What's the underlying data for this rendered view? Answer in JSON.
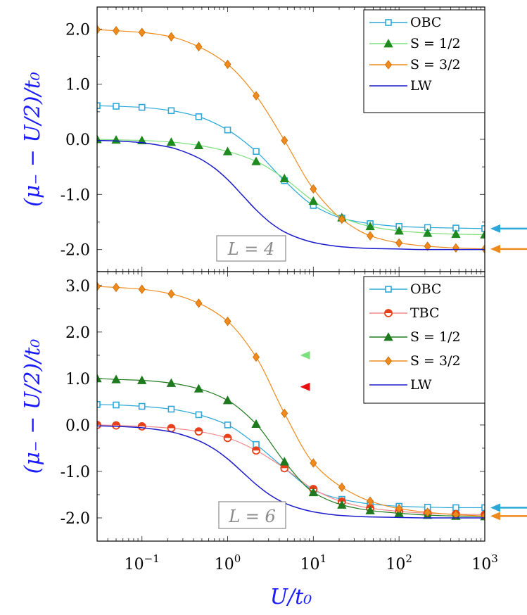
{
  "chart_data": [
    {
      "type": "line",
      "panel": "top",
      "xscale": "log",
      "xlim": [
        0.03,
        1000
      ],
      "ylim": [
        -2.4,
        2.4
      ],
      "yticks": [
        -2.0,
        -1.0,
        0.0,
        1.0,
        2.0
      ],
      "ytick_labels": [
        "-2.0",
        "-1.0",
        "0.0",
        "1.0",
        "2.0"
      ],
      "ylabel": "(μ₋ − U/2)/t₀",
      "annotation": "L = 4",
      "legend_position": "top-right",
      "series": [
        {
          "name": "OBC",
          "color": "#2aa8d8",
          "marker": "square",
          "x": [
            0.03,
            0.05,
            0.1,
            0.22,
            0.46,
            1.0,
            2.15,
            4.6,
            10,
            21.5,
            46,
            100,
            215,
            460,
            1000
          ],
          "y": [
            0.61,
            0.6,
            0.58,
            0.52,
            0.41,
            0.17,
            -0.22,
            -0.75,
            -1.2,
            -1.43,
            -1.53,
            -1.58,
            -1.6,
            -1.61,
            -1.62
          ]
        },
        {
          "name": "S = 1/2",
          "color": "#1f8a1f",
          "line_color": "#7be07b",
          "marker": "triangle",
          "x": [
            0.03,
            0.05,
            0.1,
            0.22,
            0.46,
            1.0,
            2.15,
            4.6,
            10,
            21.5,
            46,
            100,
            215,
            460,
            1000
          ],
          "y": [
            0.0,
            -0.01,
            -0.02,
            -0.05,
            -0.11,
            -0.22,
            -0.4,
            -0.71,
            -1.12,
            -1.42,
            -1.58,
            -1.66,
            -1.7,
            -1.72,
            -1.73
          ]
        },
        {
          "name": "S = 3/2",
          "color": "#f08a1c",
          "marker": "diamond",
          "x": [
            0.03,
            0.05,
            0.1,
            0.22,
            0.46,
            1.0,
            2.15,
            4.6,
            10,
            21.5,
            46,
            100,
            215,
            460,
            1000
          ],
          "y": [
            1.99,
            1.97,
            1.94,
            1.86,
            1.68,
            1.36,
            0.79,
            -0.02,
            -0.9,
            -1.45,
            -1.75,
            -1.88,
            -1.94,
            -1.97,
            -1.99
          ]
        },
        {
          "name": "LW",
          "color": "#1a1acc",
          "marker": "none",
          "x": [
            0.03,
            0.05,
            0.1,
            0.15,
            0.22,
            0.33,
            0.46,
            0.7,
            1.0,
            1.5,
            2.15,
            3.2,
            4.6,
            7,
            10,
            15,
            21.5,
            46,
            100,
            215,
            460,
            1000
          ],
          "y": [
            -0.02,
            -0.03,
            -0.06,
            -0.1,
            -0.15,
            -0.24,
            -0.34,
            -0.52,
            -0.73,
            -1.02,
            -1.28,
            -1.52,
            -1.68,
            -1.8,
            -1.87,
            -1.92,
            -1.95,
            -1.98,
            -1.99,
            -2.0,
            -2.0,
            -2.0
          ]
        }
      ],
      "edge_arrows": [
        {
          "y": -1.62,
          "color": "#2aa8d8"
        },
        {
          "y": -1.99,
          "color": "#f08a1c"
        }
      ]
    },
    {
      "type": "line",
      "panel": "bottom",
      "xscale": "log",
      "xlim": [
        0.03,
        1000
      ],
      "ylim": [
        -2.5,
        3.3
      ],
      "yticks": [
        -2.0,
        -1.0,
        0.0,
        1.0,
        2.0,
        3.0
      ],
      "ytick_labels": [
        "-2.0",
        "-1.0",
        "0.0",
        "1.0",
        "2.0",
        "3.0"
      ],
      "xticks": [
        0.1,
        1,
        10,
        100,
        1000
      ],
      "xtick_labels": [
        {
          "base": "10",
          "exp": "−1"
        },
        {
          "base": "10",
          "exp": "0"
        },
        {
          "base": "10",
          "exp": "1"
        },
        {
          "base": "10",
          "exp": "2"
        },
        {
          "base": "10",
          "exp": "3"
        }
      ],
      "xlabel": "U/t₀",
      "ylabel": "(μ₋ − U/2)/t₀",
      "annotation": "L = 6",
      "legend_position": "top-right",
      "series": [
        {
          "name": "OBC",
          "color": "#2aa8d8",
          "marker": "square",
          "x": [
            0.03,
            0.05,
            0.1,
            0.22,
            0.46,
            1.0,
            2.15,
            4.6,
            10,
            21.5,
            46,
            100,
            215,
            460,
            1000
          ],
          "y": [
            0.44,
            0.43,
            0.4,
            0.34,
            0.22,
            0.0,
            -0.42,
            -0.93,
            -1.4,
            -1.6,
            -1.7,
            -1.75,
            -1.77,
            -1.78,
            -1.78
          ]
        },
        {
          "name": "TBC",
          "color": "#e8401a",
          "line_color": "#f08a8a",
          "marker": "half-circle",
          "x": [
            0.03,
            0.05,
            0.1,
            0.22,
            0.46,
            1.0,
            2.15,
            4.6,
            10,
            21.5,
            46,
            100,
            215,
            460,
            1000
          ],
          "y": [
            0.0,
            -0.01,
            -0.03,
            -0.07,
            -0.14,
            -0.28,
            -0.55,
            -0.93,
            -1.38,
            -1.65,
            -1.79,
            -1.86,
            -1.9,
            -1.92,
            -1.93
          ]
        },
        {
          "name": "S = 1/2",
          "color": "#1f7a1f",
          "marker": "triangle",
          "x": [
            0.03,
            0.05,
            0.1,
            0.22,
            0.46,
            1.0,
            2.15,
            4.6,
            10,
            21.5,
            46,
            100,
            215,
            460,
            1000
          ],
          "y": [
            1.0,
            0.98,
            0.96,
            0.9,
            0.78,
            0.53,
            0.02,
            -0.79,
            -1.45,
            -1.72,
            -1.84,
            -1.9,
            -1.94,
            -1.96,
            -1.97
          ]
        },
        {
          "name": "S = 3/2",
          "color": "#f08a1c",
          "marker": "diamond",
          "x": [
            0.03,
            0.05,
            0.1,
            0.22,
            0.46,
            1.0,
            2.15,
            4.6,
            10,
            21.5,
            46,
            100,
            215,
            460,
            1000
          ],
          "y": [
            2.98,
            2.96,
            2.92,
            2.82,
            2.62,
            2.23,
            1.46,
            0.25,
            -0.82,
            -1.34,
            -1.64,
            -1.8,
            -1.88,
            -1.93,
            -1.96
          ]
        },
        {
          "name": "LW",
          "color": "#1a1acc",
          "marker": "none",
          "x": [
            0.03,
            0.05,
            0.1,
            0.15,
            0.22,
            0.33,
            0.46,
            0.7,
            1.0,
            1.5,
            2.15,
            3.2,
            4.6,
            7,
            10,
            15,
            21.5,
            46,
            100,
            215,
            460,
            1000
          ],
          "y": [
            -0.02,
            -0.03,
            -0.06,
            -0.1,
            -0.15,
            -0.24,
            -0.34,
            -0.52,
            -0.73,
            -1.02,
            -1.28,
            -1.52,
            -1.68,
            -1.8,
            -1.87,
            -1.92,
            -1.95,
            -1.98,
            -1.99,
            -2.0,
            -2.0,
            -2.0
          ]
        }
      ],
      "edge_arrows": [
        {
          "y": -1.78,
          "color": "#2aa8d8"
        },
        {
          "y": -1.96,
          "color": "#f08a1c"
        }
      ],
      "inner_markers": [
        {
          "x": 8.0,
          "y": 1.5,
          "color": "#7be07b"
        },
        {
          "x": 8.0,
          "y": 0.82,
          "color": "#e81010"
        }
      ]
    }
  ]
}
